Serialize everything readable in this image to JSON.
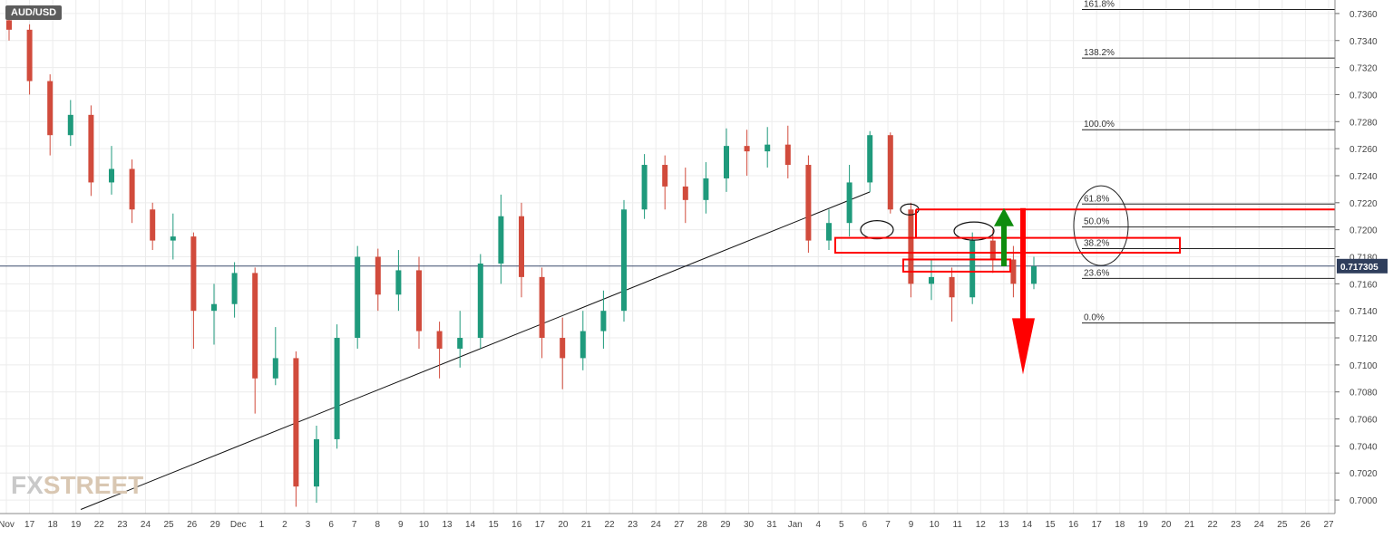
{
  "symbol": "AUD/USD",
  "logo": {
    "part1": "FX",
    "part2": "STREET"
  },
  "colors": {
    "up": "#1f9a7c",
    "down": "#d14b3c",
    "grid": "#ececec",
    "fib": "#222222",
    "annotation_red": "#ff0000",
    "annotation_green": "#0f8c0f",
    "price_line": "#3a4a6b"
  },
  "chart_data": {
    "type": "candlestick",
    "title": "AUD/USD",
    "ylim": [
      0.699,
      0.737
    ],
    "yticks": [
      "0.7000",
      "0.7020",
      "0.7040",
      "0.7060",
      "0.7080",
      "0.7100",
      "0.7120",
      "0.7140",
      "0.7160",
      "0.7180",
      "0.7200",
      "0.7220",
      "0.7240",
      "0.7260",
      "0.7280",
      "0.7300",
      "0.7320",
      "0.7340",
      "0.7360"
    ],
    "xticks": [
      "Nov",
      "17",
      "18",
      "19",
      "22",
      "23",
      "24",
      "25",
      "26",
      "29",
      "Dec",
      "1",
      "2",
      "3",
      "6",
      "7",
      "8",
      "9",
      "10",
      "13",
      "14",
      "15",
      "16",
      "17",
      "20",
      "21",
      "22",
      "23",
      "24",
      "27",
      "28",
      "29",
      "30",
      "31",
      "Jan",
      "4",
      "5",
      "6",
      "7",
      "9",
      "10",
      "11",
      "12",
      "13",
      "14",
      "15",
      "16",
      "17",
      "18",
      "19",
      "20",
      "21",
      "22",
      "23",
      "24",
      "25",
      "26",
      "27"
    ],
    "current_price": {
      "label": "0.717305",
      "value": 0.71731
    },
    "fibonacci": [
      {
        "label": "161.8%",
        "value": 0.7363
      },
      {
        "label": "138.2%",
        "value": 0.7327
      },
      {
        "label": "100.0%",
        "value": 0.7274
      },
      {
        "label": "61.8%",
        "value": 0.7219
      },
      {
        "label": "50.0%",
        "value": 0.7202
      },
      {
        "label": "38.2%",
        "value": 0.7186
      },
      {
        "label": "23.6%",
        "value": 0.7164
      },
      {
        "label": "0.0%",
        "value": 0.7131
      }
    ],
    "trendline": [
      {
        "x": 3.5,
        "y": 0.6993
      },
      {
        "x": 42,
        "y": 0.7228
      }
    ],
    "candles": [
      {
        "x": 0,
        "o": 0.7355,
        "c": 0.7348,
        "h": 0.7366,
        "l": 0.734
      },
      {
        "x": 1,
        "o": 0.7348,
        "c": 0.731,
        "h": 0.7352,
        "l": 0.73
      },
      {
        "x": 2,
        "o": 0.731,
        "c": 0.727,
        "h": 0.7315,
        "l": 0.7255
      },
      {
        "x": 3,
        "o": 0.727,
        "c": 0.7285,
        "h": 0.7296,
        "l": 0.7262
      },
      {
        "x": 4,
        "o": 0.7285,
        "c": 0.7235,
        "h": 0.7292,
        "l": 0.7225
      },
      {
        "x": 5,
        "o": 0.7235,
        "c": 0.7245,
        "h": 0.7262,
        "l": 0.7226
      },
      {
        "x": 6,
        "o": 0.7245,
        "c": 0.7215,
        "h": 0.7252,
        "l": 0.7205
      },
      {
        "x": 7,
        "o": 0.7215,
        "c": 0.7192,
        "h": 0.722,
        "l": 0.7185
      },
      {
        "x": 8,
        "o": 0.7192,
        "c": 0.7195,
        "h": 0.7212,
        "l": 0.7178
      },
      {
        "x": 9,
        "o": 0.7195,
        "c": 0.714,
        "h": 0.7198,
        "l": 0.7112
      },
      {
        "x": 10,
        "o": 0.714,
        "c": 0.7145,
        "h": 0.716,
        "l": 0.7115
      },
      {
        "x": 11,
        "o": 0.7145,
        "c": 0.7168,
        "h": 0.7176,
        "l": 0.7135
      },
      {
        "x": 12,
        "o": 0.7168,
        "c": 0.709,
        "h": 0.7172,
        "l": 0.7064
      },
      {
        "x": 13,
        "o": 0.709,
        "c": 0.7105,
        "h": 0.7128,
        "l": 0.7085
      },
      {
        "x": 14,
        "o": 0.7105,
        "c": 0.701,
        "h": 0.711,
        "l": 0.6995
      },
      {
        "x": 15,
        "o": 0.701,
        "c": 0.7045,
        "h": 0.7055,
        "l": 0.6998
      },
      {
        "x": 16,
        "o": 0.7045,
        "c": 0.712,
        "h": 0.713,
        "l": 0.7038
      },
      {
        "x": 17,
        "o": 0.712,
        "c": 0.718,
        "h": 0.7188,
        "l": 0.7112
      },
      {
        "x": 18,
        "o": 0.718,
        "c": 0.7152,
        "h": 0.7186,
        "l": 0.714
      },
      {
        "x": 19,
        "o": 0.7152,
        "c": 0.717,
        "h": 0.7185,
        "l": 0.714
      },
      {
        "x": 20,
        "o": 0.717,
        "c": 0.7125,
        "h": 0.718,
        "l": 0.7112
      },
      {
        "x": 21,
        "o": 0.7125,
        "c": 0.7112,
        "h": 0.7132,
        "l": 0.709
      },
      {
        "x": 22,
        "o": 0.7112,
        "c": 0.712,
        "h": 0.714,
        "l": 0.7098
      },
      {
        "x": 23,
        "o": 0.712,
        "c": 0.7175,
        "h": 0.7182,
        "l": 0.7112
      },
      {
        "x": 24,
        "o": 0.7175,
        "c": 0.721,
        "h": 0.7226,
        "l": 0.716
      },
      {
        "x": 25,
        "o": 0.721,
        "c": 0.7165,
        "h": 0.722,
        "l": 0.715
      },
      {
        "x": 26,
        "o": 0.7165,
        "c": 0.712,
        "h": 0.7172,
        "l": 0.7105
      },
      {
        "x": 27,
        "o": 0.712,
        "c": 0.7105,
        "h": 0.7135,
        "l": 0.7082
      },
      {
        "x": 28,
        "o": 0.7105,
        "c": 0.7125,
        "h": 0.714,
        "l": 0.7096
      },
      {
        "x": 29,
        "o": 0.7125,
        "c": 0.714,
        "h": 0.7155,
        "l": 0.7112
      },
      {
        "x": 30,
        "o": 0.714,
        "c": 0.7215,
        "h": 0.7222,
        "l": 0.7132
      },
      {
        "x": 31,
        "o": 0.7215,
        "c": 0.7248,
        "h": 0.7256,
        "l": 0.7208
      },
      {
        "x": 32,
        "o": 0.7248,
        "c": 0.7232,
        "h": 0.7255,
        "l": 0.7215
      },
      {
        "x": 33,
        "o": 0.7232,
        "c": 0.7222,
        "h": 0.7246,
        "l": 0.7205
      },
      {
        "x": 34,
        "o": 0.7222,
        "c": 0.7238,
        "h": 0.725,
        "l": 0.7212
      },
      {
        "x": 35,
        "o": 0.7238,
        "c": 0.7262,
        "h": 0.7275,
        "l": 0.7228
      },
      {
        "x": 36,
        "o": 0.7262,
        "c": 0.7258,
        "h": 0.7274,
        "l": 0.724
      },
      {
        "x": 37,
        "o": 0.7258,
        "c": 0.7263,
        "h": 0.7276,
        "l": 0.7246
      },
      {
        "x": 38,
        "o": 0.7263,
        "c": 0.7248,
        "h": 0.7277,
        "l": 0.7238
      },
      {
        "x": 39,
        "o": 0.7248,
        "c": 0.7192,
        "h": 0.7255,
        "l": 0.7183
      },
      {
        "x": 40,
        "o": 0.7192,
        "c": 0.7205,
        "h": 0.7215,
        "l": 0.7185
      },
      {
        "x": 41,
        "o": 0.7205,
        "c": 0.7235,
        "h": 0.7248,
        "l": 0.7195
      },
      {
        "x": 42,
        "o": 0.7235,
        "c": 0.727,
        "h": 0.7273,
        "l": 0.7228
      },
      {
        "x": 43,
        "o": 0.727,
        "c": 0.7215,
        "h": 0.7272,
        "l": 0.7212
      },
      {
        "x": 44,
        "o": 0.7215,
        "c": 0.716,
        "h": 0.722,
        "l": 0.715
      },
      {
        "x": 45,
        "o": 0.716,
        "c": 0.7165,
        "h": 0.7178,
        "l": 0.7148
      },
      {
        "x": 46,
        "o": 0.7165,
        "c": 0.715,
        "h": 0.7172,
        "l": 0.7132
      },
      {
        "x": 47,
        "o": 0.715,
        "c": 0.7192,
        "h": 0.7198,
        "l": 0.7145
      },
      {
        "x": 48,
        "o": 0.7192,
        "c": 0.7178,
        "h": 0.72,
        "l": 0.7168
      },
      {
        "x": 49,
        "o": 0.7178,
        "c": 0.716,
        "h": 0.7188,
        "l": 0.715
      },
      {
        "x": 50,
        "o": 0.716,
        "c": 0.7173,
        "h": 0.718,
        "l": 0.7156
      }
    ],
    "annotations": {
      "fib_ellipse_labels": [
        "61.8%",
        "50.0%",
        "38.2%"
      ],
      "resistance_zone": [
        0.7183,
        0.7194
      ],
      "upper_box_top": 0.7215,
      "small_box": [
        0.7169,
        0.7178
      ],
      "green_arrow": {
        "from": 0.7173,
        "to": 0.7216
      },
      "red_arrow": {
        "from": 0.7216,
        "to": 0.7093
      }
    }
  }
}
